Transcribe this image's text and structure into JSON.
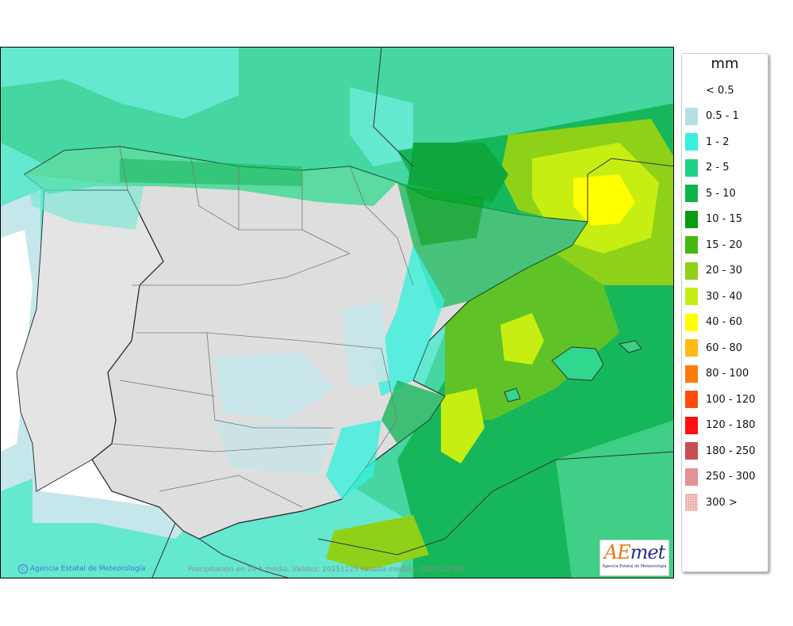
{
  "map": {
    "caption": "Precipitación en 24 h media. Validez: 20251225 Pasada modelo: 2025122300",
    "credit": "Agencia Estatal de Meteorología",
    "logo": {
      "wordmark_a": "AE",
      "wordmark_b": "met",
      "subtitle": "Agencia Estatal de Meteorología"
    }
  },
  "legend": {
    "unit": "mm",
    "items": [
      {
        "label": "< 0.5",
        "color": "#ffffff"
      },
      {
        "label": "0.5 - 1",
        "color": "#b4dfe5"
      },
      {
        "label": "1 - 2",
        "color": "#38f0dd"
      },
      {
        "label": "2 - 5",
        "color": "#1dd38a"
      },
      {
        "label": "5 - 10",
        "color": "#0db34b"
      },
      {
        "label": "10 - 15",
        "color": "#089b14"
      },
      {
        "label": "15 - 20",
        "color": "#45b80d"
      },
      {
        "label": "20 - 30",
        "color": "#8fd119"
      },
      {
        "label": "30 - 40",
        "color": "#c7ee12"
      },
      {
        "label": "40 - 60",
        "color": "#ffff00"
      },
      {
        "label": "60 - 80",
        "color": "#ffbb13"
      },
      {
        "label": "80 - 100",
        "color": "#ff7b0c"
      },
      {
        "label": "100 - 120",
        "color": "#ff4b0c"
      },
      {
        "label": "120 - 180",
        "color": "#ff0f0f"
      },
      {
        "label": "180 - 250",
        "color": "#c74f52"
      },
      {
        "label": "250 - 300",
        "color": "#e09294"
      },
      {
        "label": "300 >",
        "color": "#f6cdcb"
      }
    ]
  }
}
